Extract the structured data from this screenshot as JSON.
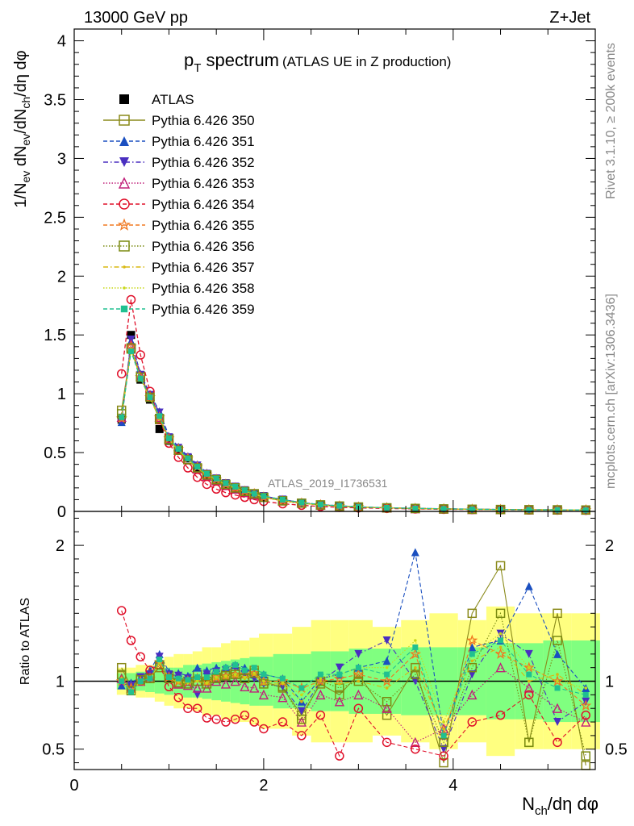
{
  "header": {
    "energy_label": "13000 GeV pp",
    "process_label": "Z+Jet"
  },
  "side_text": {
    "rivet": "Rivet 3.1.10, ≥ 200k events",
    "source": "mcplots.cern.ch [arXiv:1306.3436]"
  },
  "watermark": "ATLAS_2019_I1736531",
  "colors": {
    "atlas": "#000000",
    "band_outer": "#ffff80",
    "band_inner": "#80ff80"
  },
  "chart_data": [
    {
      "type": "scatter",
      "panel": "main",
      "title": "p_T spectrum",
      "title_parts": {
        "main": "p",
        "sub": "T",
        "rest": " spectrum",
        "note": "(ATLAS UE in Z production)"
      },
      "ylabel": "1/N_ev dN_ev/dN_ch/dη dφ",
      "ylabel_parts": {
        "a": "1/N",
        "a_sub": "ev",
        "b": " dN",
        "b_sub": "ev",
        "c": "/dN",
        "c_sub": "ch",
        "d": "/dη dφ"
      },
      "xlim": [
        0,
        5.5
      ],
      "ylim": [
        0,
        4.1
      ],
      "yticks": [
        0,
        0.5,
        1,
        1.5,
        2,
        2.5,
        3,
        3.5,
        4
      ],
      "ytick_labels": [
        "0",
        "0.5",
        "1",
        "1.5",
        "2",
        "2.5",
        "3",
        "3.5",
        "4"
      ],
      "legend_position": "top-left",
      "x": [
        0.5,
        0.6,
        0.7,
        0.8,
        0.9,
        1.0,
        1.1,
        1.2,
        1.3,
        1.4,
        1.5,
        1.6,
        1.7,
        1.8,
        1.9,
        2.0,
        2.2,
        2.4,
        2.6,
        2.8,
        3.0,
        3.3,
        3.6,
        3.9,
        4.2,
        4.5,
        4.8,
        5.1,
        5.4
      ],
      "series": [
        {
          "name": "ATLAS",
          "color": "#000000",
          "marker": "filled-square",
          "line": "none",
          "values": [
            0.78,
            1.5,
            1.12,
            0.95,
            0.7,
            0.6,
            0.52,
            0.45,
            0.37,
            0.31,
            0.26,
            0.22,
            0.19,
            0.16,
            0.14,
            0.12,
            0.09,
            0.07,
            0.055,
            0.045,
            0.037,
            0.03,
            0.025,
            0.021,
            0.018,
            0.016,
            0.014,
            0.013,
            0.012
          ]
        },
        {
          "name": "Pythia 6.426 350",
          "color": "#8a8a1a",
          "marker": "open-square",
          "line": "solid",
          "values": [
            0.86,
            1.38,
            1.15,
            0.98,
            0.78,
            0.62,
            0.52,
            0.44,
            0.37,
            0.31,
            0.27,
            0.23,
            0.2,
            0.17,
            0.15,
            0.12,
            0.09,
            0.07,
            0.055,
            0.045,
            0.037,
            0.03,
            0.025,
            0.021,
            0.018,
            0.016,
            0.014,
            0.013,
            0.012
          ]
        },
        {
          "name": "Pythia 6.426 351",
          "color": "#1a4fc0",
          "marker": "filled-triangle-up",
          "line": "dashed",
          "values": [
            0.76,
            1.45,
            1.17,
            1.0,
            0.85,
            0.64,
            0.55,
            0.47,
            0.4,
            0.33,
            0.28,
            0.24,
            0.21,
            0.18,
            0.15,
            0.13,
            0.1,
            0.075,
            0.058,
            0.047,
            0.039,
            0.031,
            0.026,
            0.022,
            0.019,
            0.016,
            0.014,
            0.013,
            0.012
          ]
        },
        {
          "name": "Pythia 6.426 352",
          "color": "#4a2fc0",
          "marker": "filled-triangle-down",
          "line": "dashdot",
          "values": [
            0.77,
            1.46,
            1.16,
            0.99,
            0.84,
            0.63,
            0.54,
            0.46,
            0.39,
            0.32,
            0.28,
            0.24,
            0.21,
            0.18,
            0.15,
            0.13,
            0.1,
            0.074,
            0.057,
            0.046,
            0.038,
            0.031,
            0.026,
            0.022,
            0.019,
            0.016,
            0.014,
            0.013,
            0.012
          ]
        },
        {
          "name": "Pythia 6.426 353",
          "color": "#c0207a",
          "marker": "open-triangle-up",
          "line": "dotted",
          "values": [
            0.8,
            1.42,
            1.15,
            0.98,
            0.8,
            0.62,
            0.52,
            0.44,
            0.36,
            0.3,
            0.26,
            0.22,
            0.19,
            0.16,
            0.14,
            0.12,
            0.09,
            0.07,
            0.054,
            0.044,
            0.036,
            0.029,
            0.024,
            0.02,
            0.017,
            0.015,
            0.013,
            0.012,
            0.011
          ]
        },
        {
          "name": "Pythia 6.426 354",
          "color": "#e0102a",
          "marker": "open-circle",
          "line": "dashed",
          "values": [
            1.17,
            1.8,
            1.33,
            1.02,
            0.78,
            0.58,
            0.46,
            0.37,
            0.29,
            0.23,
            0.19,
            0.16,
            0.14,
            0.12,
            0.1,
            0.085,
            0.065,
            0.052,
            0.042,
            0.035,
            0.03,
            0.025,
            0.021,
            0.018,
            0.016,
            0.014,
            0.012,
            0.011,
            0.01
          ]
        },
        {
          "name": "Pythia 6.426 355",
          "color": "#f07820",
          "marker": "open-star",
          "line": "dashed",
          "values": [
            0.79,
            1.4,
            1.14,
            0.97,
            0.8,
            0.62,
            0.53,
            0.45,
            0.38,
            0.31,
            0.27,
            0.23,
            0.2,
            0.17,
            0.15,
            0.12,
            0.09,
            0.07,
            0.055,
            0.045,
            0.037,
            0.03,
            0.025,
            0.021,
            0.018,
            0.016,
            0.014,
            0.013,
            0.012
          ]
        },
        {
          "name": "Pythia 6.426 356",
          "color": "#7a8a10",
          "marker": "open-square",
          "line": "dotted",
          "values": [
            0.83,
            1.39,
            1.14,
            0.97,
            0.79,
            0.61,
            0.52,
            0.44,
            0.37,
            0.31,
            0.27,
            0.23,
            0.2,
            0.17,
            0.15,
            0.12,
            0.09,
            0.07,
            0.055,
            0.045,
            0.037,
            0.03,
            0.025,
            0.021,
            0.018,
            0.016,
            0.014,
            0.013,
            0.012
          ]
        },
        {
          "name": "Pythia 6.426 357",
          "color": "#d8b810",
          "marker": "small-dot",
          "line": "dashdot",
          "values": [
            0.8,
            1.38,
            1.13,
            0.96,
            0.79,
            0.61,
            0.52,
            0.44,
            0.37,
            0.31,
            0.27,
            0.23,
            0.2,
            0.17,
            0.15,
            0.12,
            0.09,
            0.07,
            0.055,
            0.045,
            0.037,
            0.03,
            0.025,
            0.021,
            0.018,
            0.016,
            0.014,
            0.013,
            0.012
          ]
        },
        {
          "name": "Pythia 6.426 358",
          "color": "#c8d818",
          "marker": "small-dot",
          "line": "dotted",
          "values": [
            0.81,
            1.37,
            1.13,
            0.96,
            0.8,
            0.61,
            0.52,
            0.44,
            0.37,
            0.31,
            0.27,
            0.23,
            0.2,
            0.17,
            0.15,
            0.12,
            0.09,
            0.07,
            0.055,
            0.045,
            0.037,
            0.03,
            0.025,
            0.021,
            0.018,
            0.016,
            0.014,
            0.013,
            0.012
          ]
        },
        {
          "name": "Pythia 6.426 359",
          "color": "#20c090",
          "marker": "filled-square-small",
          "line": "dashed",
          "values": [
            0.8,
            1.36,
            1.13,
            0.97,
            0.81,
            0.62,
            0.53,
            0.45,
            0.38,
            0.32,
            0.28,
            0.24,
            0.21,
            0.18,
            0.15,
            0.13,
            0.1,
            0.075,
            0.058,
            0.047,
            0.039,
            0.031,
            0.026,
            0.022,
            0.019,
            0.016,
            0.014,
            0.013,
            0.012
          ]
        }
      ]
    },
    {
      "type": "scatter",
      "panel": "ratio",
      "ylabel": "Ratio to ATLAS",
      "xlabel": "N_ch/dη dφ",
      "xlabel_parts": {
        "a": "N",
        "a_sub": "ch",
        "b": "/dη dφ"
      },
      "xlim": [
        0,
        5.5
      ],
      "ylim": [
        0.35,
        2.25
      ],
      "xticks": [
        0,
        2,
        4
      ],
      "xtick_labels": [
        "0",
        "2",
        "4"
      ],
      "yticks": [
        0.5,
        1,
        2
      ],
      "ytick_labels": [
        "0.5",
        "1",
        "2"
      ],
      "reference_line": 1,
      "x": [
        0.5,
        0.6,
        0.7,
        0.8,
        0.9,
        1.0,
        1.1,
        1.2,
        1.3,
        1.4,
        1.5,
        1.6,
        1.7,
        1.8,
        1.9,
        2.0,
        2.2,
        2.4,
        2.6,
        2.8,
        3.0,
        3.3,
        3.6,
        3.9,
        4.2,
        4.5,
        4.8,
        5.1,
        5.4
      ],
      "band_outer": [
        0.1,
        0.1,
        0.12,
        0.12,
        0.15,
        0.18,
        0.2,
        0.2,
        0.22,
        0.25,
        0.25,
        0.28,
        0.3,
        0.3,
        0.32,
        0.35,
        0.35,
        0.4,
        0.45,
        0.45,
        0.45,
        0.4,
        0.45,
        0.5,
        0.45,
        0.55,
        0.5,
        0.5,
        0.5
      ],
      "band_inner": [
        0.06,
        0.06,
        0.07,
        0.08,
        0.09,
        0.1,
        0.1,
        0.12,
        0.12,
        0.13,
        0.14,
        0.15,
        0.16,
        0.17,
        0.18,
        0.18,
        0.2,
        0.2,
        0.22,
        0.22,
        0.24,
        0.24,
        0.25,
        0.25,
        0.25,
        0.28,
        0.28,
        0.3,
        0.3
      ],
      "series": [
        {
          "name": "Pythia 6.426 350",
          "values": [
            1.1,
            0.96,
            1.02,
            1.03,
            1.1,
            1.04,
            0.98,
            1.0,
            1.05,
            1.0,
            1.03,
            1.05,
            1.07,
            1.02,
            1.08,
            1.0,
            0.95,
            0.75,
            0.98,
            0.9,
            1.05,
            0.75,
            1.1,
            0.4,
            1.5,
            1.85,
            0.55,
            1.5,
            0.38
          ]
        },
        {
          "name": "Pythia 6.426 351",
          "values": [
            0.97,
            0.99,
            1.03,
            1.08,
            1.2,
            1.07,
            1.06,
            1.04,
            1.1,
            1.08,
            1.1,
            1.1,
            1.12,
            1.1,
            1.05,
            1.05,
            1.02,
            0.85,
            1.02,
            1.05,
            1.1,
            1.15,
            1.95,
            0.6,
            1.25,
            1.3,
            1.7,
            1.2,
            0.95
          ]
        },
        {
          "name": "Pythia 6.426 352",
          "values": [
            0.98,
            0.97,
            1.03,
            1.05,
            1.18,
            1.05,
            1.04,
            1.02,
            0.9,
            1.05,
            1.07,
            1.08,
            1.1,
            1.05,
            1.02,
            0.98,
            0.96,
            0.78,
            1.0,
            1.1,
            1.2,
            1.3,
            1.0,
            0.5,
            1.05,
            1.35,
            1.2,
            0.7,
            0.85
          ]
        },
        {
          "name": "Pythia 6.426 353",
          "values": [
            1.02,
            0.95,
            1.0,
            1.03,
            1.12,
            1.02,
            0.98,
            0.97,
            0.95,
            0.95,
            1.0,
            0.98,
            1.0,
            0.96,
            0.95,
            0.9,
            0.88,
            0.7,
            0.9,
            0.85,
            0.9,
            0.8,
            0.55,
            0.65,
            0.9,
            1.1,
            0.95,
            0.8,
            0.7
          ]
        },
        {
          "name": "Pythia 6.426 354",
          "values": [
            1.52,
            1.3,
            1.18,
            1.08,
            1.12,
            0.96,
            0.88,
            0.8,
            0.8,
            0.73,
            0.72,
            0.7,
            0.72,
            0.75,
            0.7,
            0.65,
            0.7,
            0.6,
            0.75,
            0.45,
            0.8,
            0.55,
            0.5,
            0.45,
            0.7,
            0.75,
            0.9,
            0.55,
            0.75
          ]
        },
        {
          "name": "Pythia 6.426 355",
          "values": [
            1.0,
            0.95,
            1.0,
            1.02,
            1.14,
            1.03,
            1.0,
            1.0,
            1.02,
            1.0,
            1.03,
            1.04,
            1.05,
            1.05,
            1.06,
            1.0,
            1.0,
            0.95,
            1.0,
            1.02,
            1.05,
            1.0,
            1.2,
            0.6,
            1.3,
            1.2,
            1.1,
            1.0,
            0.82
          ]
        },
        {
          "name": "Pythia 6.426 356",
          "values": [
            1.05,
            0.93,
            1.01,
            1.02,
            1.12,
            1.02,
            0.99,
            0.98,
            1.0,
            0.98,
            1.02,
            1.04,
            1.05,
            1.02,
            1.06,
            0.98,
            0.96,
            0.72,
            1.0,
            0.95,
            1.0,
            0.85,
            1.05,
            0.55,
            1.1,
            1.5,
            0.55,
            1.3,
            0.45
          ]
        },
        {
          "name": "Pythia 6.426 357",
          "values": [
            1.0,
            0.93,
            1.0,
            1.02,
            1.13,
            1.02,
            0.99,
            0.99,
            1.0,
            0.98,
            1.02,
            1.03,
            1.04,
            1.02,
            1.05,
            0.98,
            0.98,
            0.85,
            1.0,
            0.98,
            1.0,
            0.95,
            1.1,
            0.65,
            1.15,
            1.25,
            1.0,
            1.05,
            0.9
          ]
        },
        {
          "name": "Pythia 6.426 358",
          "values": [
            1.02,
            0.92,
            1.0,
            1.02,
            1.14,
            1.02,
            1.0,
            0.99,
            1.0,
            0.99,
            1.03,
            1.04,
            1.05,
            1.03,
            1.06,
            1.0,
            0.99,
            0.9,
            1.02,
            1.05,
            1.1,
            1.1,
            1.3,
            0.7,
            1.2,
            1.35,
            1.1,
            1.0,
            0.95
          ]
        },
        {
          "name": "Pythia 6.426 359",
          "values": [
            1.0,
            0.92,
            1.0,
            1.02,
            1.16,
            1.03,
            1.02,
            1.01,
            1.03,
            1.03,
            1.07,
            1.1,
            1.12,
            1.08,
            1.1,
            1.05,
            1.02,
            0.95,
            1.05,
            1.05,
            1.1,
            1.05,
            1.25,
            0.6,
            1.2,
            1.3,
            1.05,
            0.95,
            0.9
          ]
        }
      ]
    }
  ]
}
